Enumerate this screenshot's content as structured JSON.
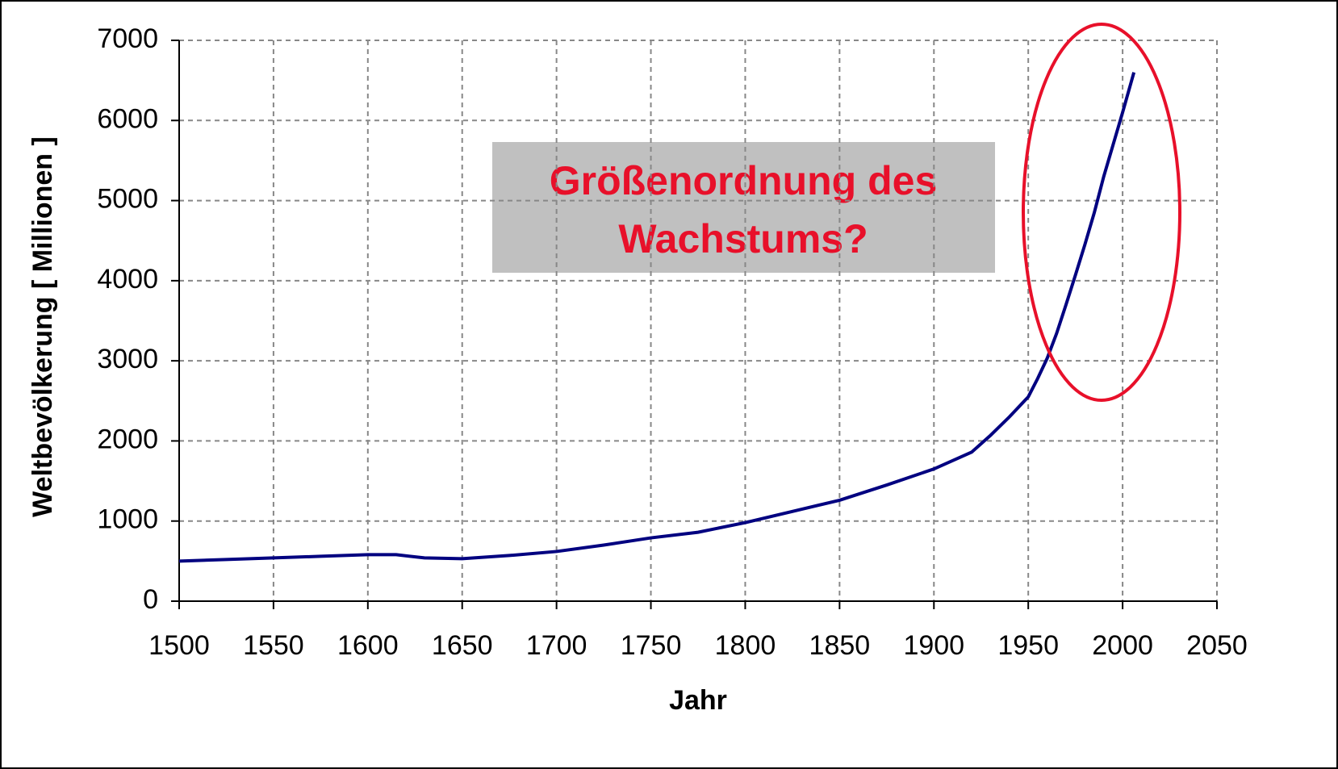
{
  "chart_data": {
    "type": "line",
    "ylabel": "Weltbevölkerung [ Millionen ]",
    "xlabel": "Jahr",
    "annotation": [
      "Größenordnung des",
      "Wachstums?"
    ],
    "x": [
      1500,
      1525,
      1550,
      1575,
      1600,
      1615,
      1630,
      1650,
      1675,
      1700,
      1725,
      1750,
      1775,
      1800,
      1825,
      1850,
      1875,
      1900,
      1920,
      1930,
      1940,
      1950,
      1955,
      1960,
      1965,
      1970,
      1975,
      1980,
      1985,
      1990,
      1995,
      2000,
      2006
    ],
    "values": [
      500,
      520,
      540,
      560,
      580,
      580,
      540,
      530,
      570,
      620,
      700,
      790,
      860,
      980,
      1120,
      1260,
      1450,
      1650,
      1860,
      2070,
      2300,
      2550,
      2780,
      3030,
      3340,
      3700,
      4070,
      4450,
      4850,
      5300,
      5700,
      6100,
      6600
    ],
    "color": "#000080",
    "xlim": [
      1500,
      2050
    ],
    "xticks": [
      1500,
      1550,
      1600,
      1650,
      1700,
      1750,
      1800,
      1850,
      1900,
      1950,
      2000,
      2050
    ],
    "ylim": [
      0,
      7000
    ],
    "yticks": [
      0,
      1000,
      2000,
      3000,
      4000,
      5000,
      6000,
      7000
    ],
    "grid": true
  }
}
